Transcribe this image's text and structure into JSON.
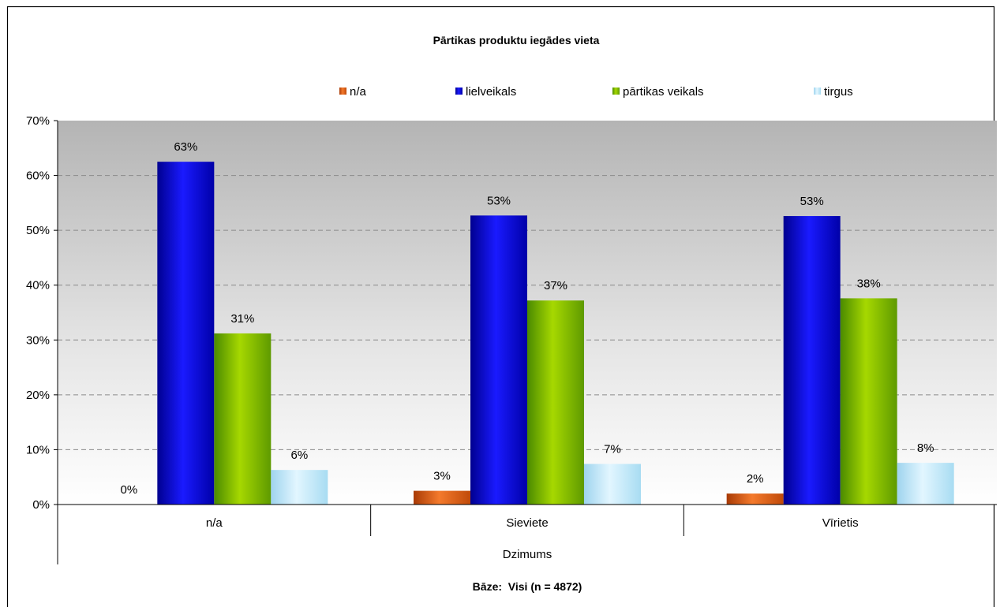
{
  "chart_data": {
    "type": "bar",
    "title": "Pārtikas produktu iegādes vieta",
    "categories": [
      "n/a",
      "Sieviete",
      "Vīrietis"
    ],
    "group_label": "Dzimums",
    "base_note": "Bāze:  Visi (n = 4872)",
    "ylim": [
      0,
      70
    ],
    "yticks": [
      0,
      10,
      20,
      30,
      40,
      50,
      60,
      70
    ],
    "ytick_labels": [
      "0%",
      "10%",
      "20%",
      "30%",
      "40%",
      "50%",
      "60%",
      "70%"
    ],
    "grid": true,
    "legend_position": "top",
    "series": [
      {
        "name": "n/a",
        "color": "#e8641a",
        "values": [
          0,
          2.5,
          2.0
        ],
        "labels": [
          "0%",
          "3%",
          "2%"
        ]
      },
      {
        "name": "lielveikals",
        "color": "#1010e0",
        "values": [
          62.5,
          52.7,
          52.6
        ],
        "labels": [
          "63%",
          "53%",
          "53%"
        ]
      },
      {
        "name": "pārtikas veikals",
        "color": "#8fc800",
        "values": [
          31.2,
          37.2,
          37.6
        ],
        "labels": [
          "31%",
          "37%",
          "38%"
        ]
      },
      {
        "name": "tirgus",
        "color": "#bde8f8",
        "values": [
          6.3,
          7.4,
          7.6
        ],
        "labels": [
          "6%",
          "7%",
          "8%"
        ]
      }
    ]
  }
}
